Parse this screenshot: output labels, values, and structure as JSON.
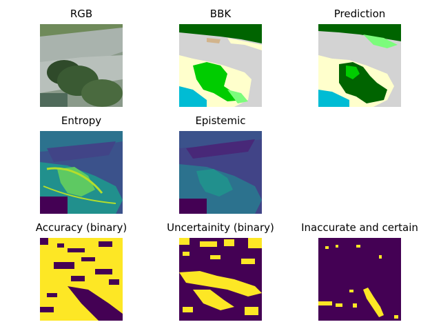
{
  "figure": {
    "panels": [
      {
        "id": "rgb",
        "title": "RGB"
      },
      {
        "id": "bbk",
        "title": "BBK"
      },
      {
        "id": "prediction",
        "title": "Prediction"
      },
      {
        "id": "entropy",
        "title": "Entropy"
      },
      {
        "id": "epistemic",
        "title": "Epistemic"
      },
      {
        "id": "accuracy",
        "title": "Accuracy (binary)"
      },
      {
        "id": "uncertainty",
        "title": "Uncertainity (binary)"
      },
      {
        "id": "inaccurate",
        "title": "Inaccurate and certain"
      }
    ]
  },
  "colors": {
    "viridis_dark": "#440154",
    "viridis_mid": "#21908d",
    "viridis_yellow": "#fde725",
    "class_dark_green": "#006400",
    "class_bright_green": "#00cc00",
    "class_light_green": "#7cfc7c",
    "class_gray": "#d3d3d3",
    "class_cream": "#ffffcc",
    "class_tan": "#d2b48c",
    "class_cyan": "#00bcd4"
  }
}
